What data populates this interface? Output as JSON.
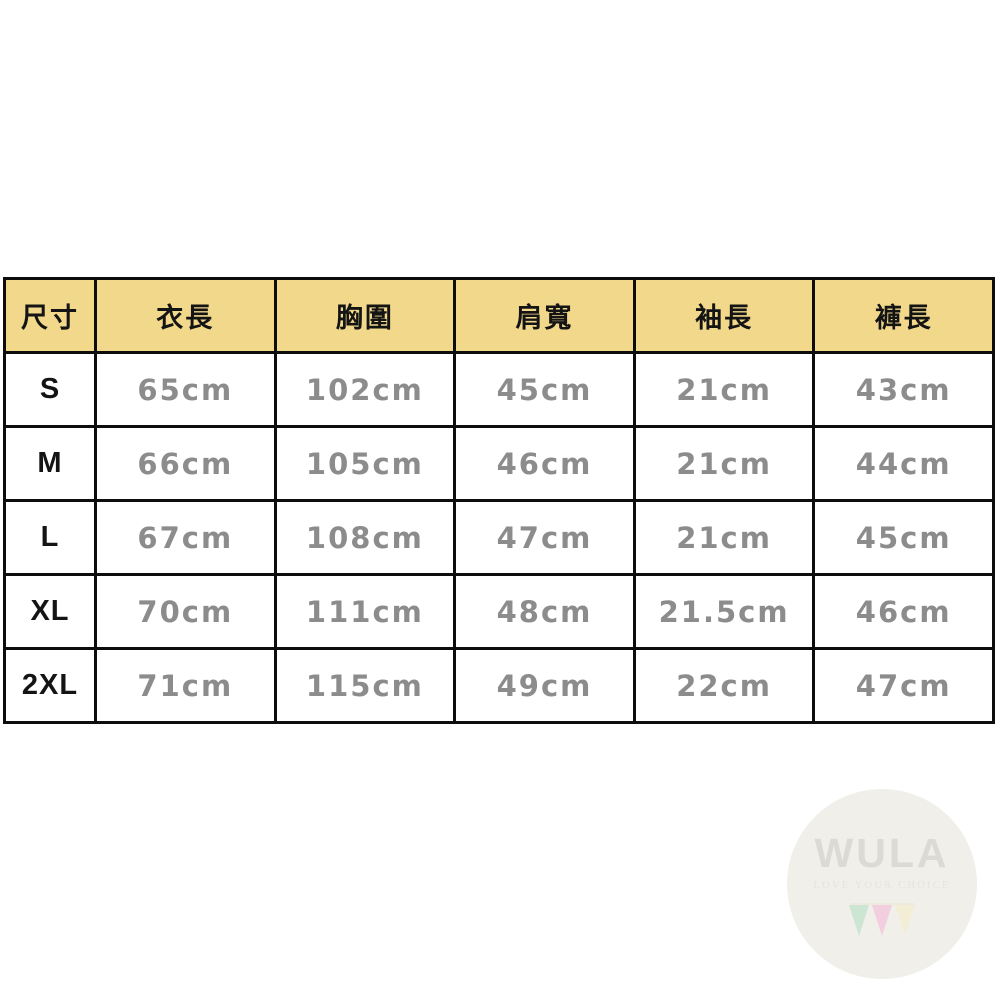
{
  "page": {
    "background": "#FFFFFF"
  },
  "table": {
    "header_bg": "#F2D88A",
    "border_color": "#0D0D0D",
    "value_color": "#8C8C8C",
    "label_color": "#141414",
    "columns": [
      "尺寸",
      "衣長",
      "胸圍",
      "肩寬",
      "袖長",
      "褲長"
    ],
    "rows": [
      {
        "size": "S",
        "values": [
          "65cm",
          "102cm",
          "45cm",
          "21cm",
          "43cm"
        ]
      },
      {
        "size": "M",
        "values": [
          "66cm",
          "105cm",
          "46cm",
          "21cm",
          "44cm"
        ]
      },
      {
        "size": "L",
        "values": [
          "67cm",
          "108cm",
          "47cm",
          "21cm",
          "45cm"
        ]
      },
      {
        "size": "XL",
        "values": [
          "70cm",
          "111cm",
          "48cm",
          "21.5cm",
          "46cm"
        ]
      },
      {
        "size": "2XL",
        "values": [
          "71cm",
          "115cm",
          "49cm",
          "22cm",
          "47cm"
        ]
      }
    ]
  },
  "watermark": {
    "brand": "WULA",
    "slogan": "LOVE YOUR CHOICE",
    "circle_color": "#F0EFEA",
    "brand_text_color": "#DBDAD4",
    "slogan_text_color": "#E6E3DC",
    "pennant_colors": [
      "#CDE5D3",
      "#F3CEDE",
      "#F4EDD6"
    ]
  },
  "chart_data": {
    "type": "table",
    "title": "Clothing size chart (cm)",
    "columns": [
      "尺寸",
      "衣長",
      "胸圍",
      "肩寬",
      "袖長",
      "褲長"
    ],
    "rows": [
      [
        "S",
        "65cm",
        "102cm",
        "45cm",
        "21cm",
        "43cm"
      ],
      [
        "M",
        "66cm",
        "105cm",
        "46cm",
        "21cm",
        "44cm"
      ],
      [
        "L",
        "67cm",
        "108cm",
        "47cm",
        "21cm",
        "45cm"
      ],
      [
        "XL",
        "70cm",
        "111cm",
        "48cm",
        "21.5cm",
        "46cm"
      ],
      [
        "2XL",
        "71cm",
        "115cm",
        "49cm",
        "22cm",
        "47cm"
      ]
    ]
  }
}
